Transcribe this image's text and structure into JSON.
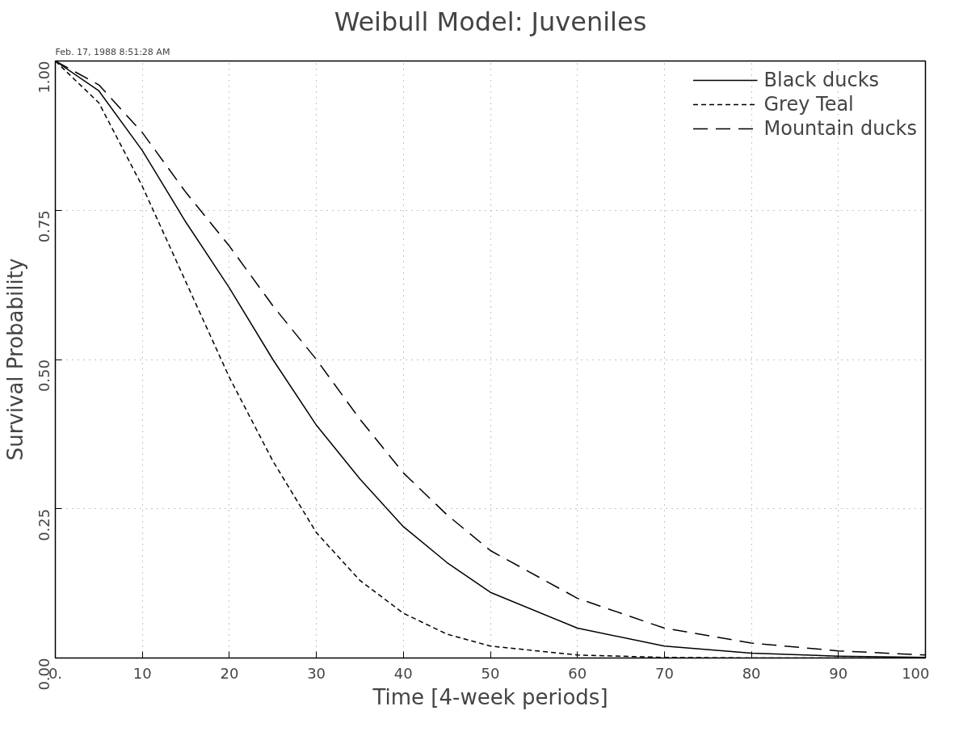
{
  "chart_data": {
    "type": "line",
    "title": "Weibull Model: Juveniles",
    "xlabel": "Time [4-week periods]",
    "ylabel": "Survival Probability",
    "annotations": [
      "Feb. 17, 1988 8:51:28 AM"
    ],
    "x": [
      0,
      5,
      10,
      15,
      20,
      25,
      30,
      35,
      40,
      45,
      50,
      60,
      70,
      80,
      90,
      100
    ],
    "series": [
      {
        "name": "Black ducks",
        "color": "#000000",
        "line_style": "solid",
        "values": [
          1,
          0.95,
          0.85,
          0.73,
          0.62,
          0.5,
          0.39,
          0.3,
          0.22,
          0.16,
          0.11,
          0.05,
          0.02,
          0.008,
          0.003,
          0.001
        ]
      },
      {
        "name": "Grey Teal",
        "color": "#000000",
        "line_style": "dotted",
        "values": [
          1,
          0.93,
          0.79,
          0.63,
          0.47,
          0.33,
          0.21,
          0.13,
          0.075,
          0.04,
          0.02,
          0.005,
          0.001,
          0,
          0,
          0
        ]
      },
      {
        "name": "Mountain ducks",
        "color": "#000000",
        "line_style": "dashed",
        "values": [
          1,
          0.96,
          0.88,
          0.78,
          0.69,
          0.59,
          0.5,
          0.4,
          0.31,
          0.24,
          0.18,
          0.1,
          0.05,
          0.025,
          0.012,
          0.005
        ]
      }
    ],
    "xlim": [
      0,
      100
    ],
    "ylim": [
      0,
      1
    ],
    "xticks": [
      {
        "value": 0,
        "label": "0."
      },
      10,
      20,
      30,
      40,
      50,
      60,
      70,
      80,
      90,
      100
    ],
    "yticks": [
      {
        "value": 0,
        "label": "0.00"
      },
      {
        "value": 0.25,
        "label": "0.25"
      },
      {
        "value": 0.5,
        "label": "0.50"
      },
      {
        "value": 0.75,
        "label": "0.75"
      },
      {
        "value": 1,
        "label": "1.00"
      }
    ],
    "grid": true,
    "legend": "top right"
  }
}
